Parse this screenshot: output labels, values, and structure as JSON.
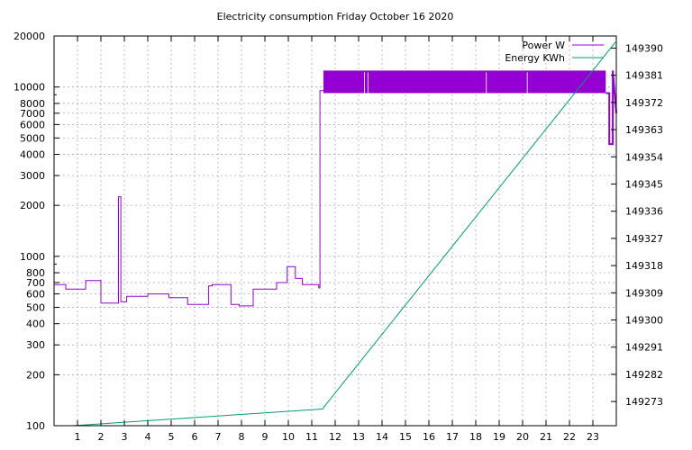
{
  "chart_data": {
    "type": "line",
    "title": "Electricity consumption Friday October 16 2020",
    "xlabel": "",
    "ylabel": "",
    "x_range": [
      0,
      24
    ],
    "x_ticks": [
      "1",
      "2",
      "3",
      "4",
      "5",
      "6",
      "7",
      "8",
      "9",
      "10",
      "11",
      "12",
      "13",
      "14",
      "15",
      "16",
      "17",
      "18",
      "19",
      "20",
      "21",
      "22",
      "23"
    ],
    "y_left": {
      "scale": "log",
      "range": [
        100,
        20000
      ],
      "ticks": [
        "100",
        "200",
        "300",
        "400",
        "500",
        "600",
        "700",
        "800",
        "1000",
        "2000",
        "3000",
        "4000",
        "5000",
        "6000",
        "7000",
        "8000",
        "10000",
        "20000"
      ]
    },
    "y_right": {
      "scale": "linear",
      "range": [
        149265,
        149394
      ],
      "ticks": [
        "149273",
        "149282",
        "149291",
        "149300",
        "149309",
        "149318",
        "149327",
        "149336",
        "149345",
        "149354",
        "149363",
        "149372",
        "149381",
        "149390"
      ]
    },
    "grid": true,
    "legend_position": "top-right",
    "series": [
      {
        "name": "Power W",
        "axis": "left",
        "color": "#9400d3",
        "x": [
          0.0,
          0.5,
          0.5,
          1.35,
          1.35,
          2.0,
          2.0,
          2.75,
          2.75,
          2.85,
          2.85,
          3.1,
          3.1,
          4.0,
          4.0,
          4.9,
          4.9,
          5.7,
          5.7,
          6.6,
          6.6,
          6.75,
          6.75,
          7.55,
          7.55,
          7.9,
          7.9,
          8.5,
          8.5,
          9.5,
          9.5,
          9.95,
          9.95,
          10.3,
          10.3,
          10.6,
          10.6,
          11.3,
          11.3,
          11.35,
          11.35,
          11.5
        ],
        "y": [
          680,
          680,
          640,
          640,
          720,
          720,
          530,
          530,
          2250,
          2250,
          540,
          540,
          580,
          580,
          600,
          600,
          570,
          570,
          520,
          520,
          670,
          670,
          680,
          680,
          520,
          520,
          510,
          510,
          640,
          640,
          700,
          700,
          870,
          870,
          740,
          740,
          680,
          680,
          650,
          650,
          9500,
          9500
        ],
        "band": {
          "x_start": 11.5,
          "x_end": 23.55,
          "low": 9200,
          "high": 12500,
          "gaps_x": [
            13.25,
            13.4,
            18.45,
            20.2
          ]
        },
        "tail": {
          "x": [
            23.55,
            23.7,
            23.7,
            23.85,
            23.85,
            24.0
          ],
          "y": [
            9200,
            9200,
            4600,
            4600,
            12500,
            7000
          ]
        }
      },
      {
        "name": "Energy KWh",
        "axis": "right",
        "color": "#009e73",
        "x": [
          0.8,
          11.45,
          23.97
        ],
        "y": [
          149265,
          149270.5,
          149392
        ]
      }
    ]
  }
}
